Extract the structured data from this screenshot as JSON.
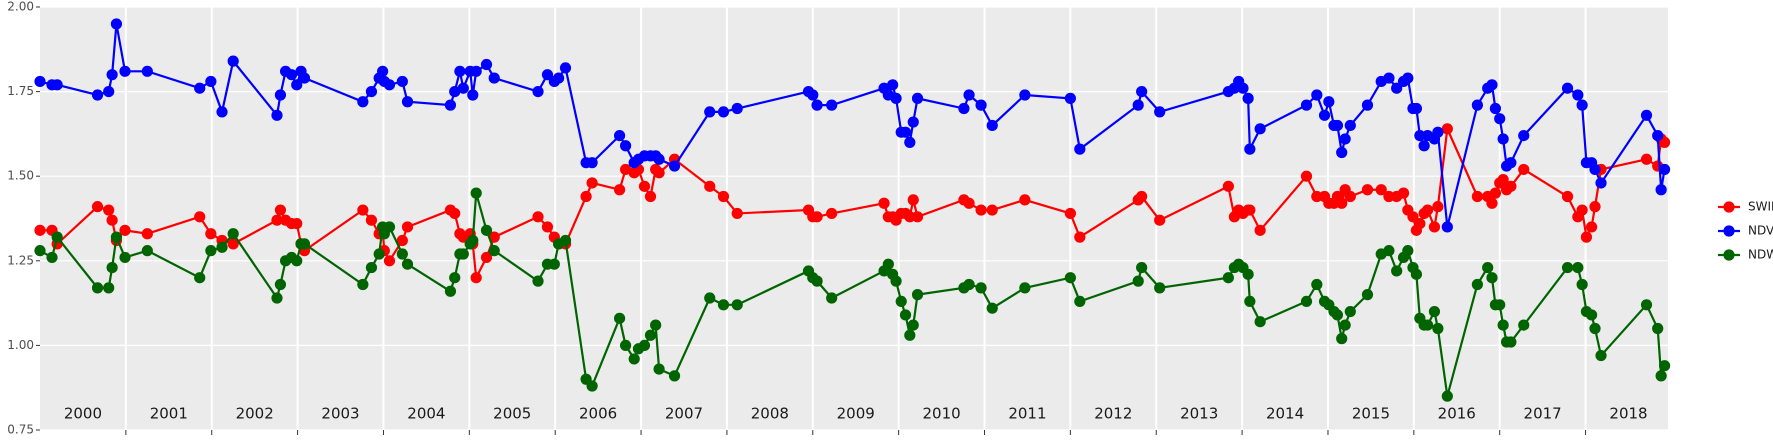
{
  "chart_data": {
    "type": "line",
    "x": [
      2000.0,
      2000.14,
      2000.2,
      2000.67,
      2000.8,
      2000.84,
      2000.89,
      2000.99,
      2001.25,
      2001.86,
      2001.99,
      2002.12,
      2002.25,
      2002.76,
      2002.8,
      2002.86,
      2002.93,
      2002.99,
      2003.04,
      2003.08,
      2003.76,
      2003.86,
      2003.95,
      2003.99,
      2004.01,
      2004.07,
      2004.22,
      2004.28,
      2004.78,
      2004.83,
      2004.89,
      2004.93,
      2005.01,
      2005.04,
      2005.08,
      2005.2,
      2005.29,
      2005.8,
      2005.91,
      2005.99,
      2006.04,
      2006.12,
      2006.36,
      2006.43,
      2006.75,
      2006.82,
      2006.92,
      2006.97,
      2007.04,
      2007.11,
      2007.17,
      2007.21,
      2007.39,
      2007.8,
      2007.96,
      2008.12,
      2008.95,
      2009.0,
      2009.05,
      2009.22,
      2009.83,
      2009.88,
      2009.93,
      2009.97,
      2010.03,
      2010.08,
      2010.13,
      2010.17,
      2010.22,
      2010.76,
      2010.82,
      2010.96,
      2011.09,
      2011.47,
      2012.0,
      2012.11,
      2012.79,
      2012.83,
      2013.04,
      2013.84,
      2013.91,
      2013.96,
      2014.01,
      2014.07,
      2014.09,
      2014.21,
      2014.75,
      2014.87,
      2014.96,
      2015.01,
      2015.07,
      2015.11,
      2015.16,
      2015.2,
      2015.26,
      2015.46,
      2015.62,
      2015.71,
      2015.8,
      2015.88,
      2015.93,
      2015.99,
      2016.03,
      2016.07,
      2016.12,
      2016.16,
      2016.24,
      2016.28,
      2016.39,
      2016.74,
      2016.86,
      2016.91,
      2016.95,
      2017.0,
      2017.04,
      2017.08,
      2017.13,
      2017.28,
      2017.79,
      2017.91,
      2017.96,
      2018.01,
      2018.07,
      2018.11,
      2018.18,
      2018.71,
      2018.84,
      2018.88,
      2018.92
    ],
    "series": [
      {
        "name": "SWIR",
        "color": "#ff0000",
        "values": [
          1.34,
          1.34,
          1.3,
          1.41,
          1.4,
          1.37,
          1.31,
          1.34,
          1.33,
          1.38,
          1.33,
          1.31,
          1.3,
          1.37,
          1.4,
          1.37,
          1.36,
          1.36,
          1.3,
          1.28,
          1.4,
          1.37,
          1.33,
          1.34,
          1.28,
          1.25,
          1.31,
          1.35,
          1.4,
          1.39,
          1.33,
          1.32,
          1.33,
          1.3,
          1.2,
          1.26,
          1.32,
          1.38,
          1.35,
          1.32,
          1.3,
          1.3,
          1.44,
          1.48,
          1.46,
          1.52,
          1.51,
          1.52,
          1.47,
          1.44,
          1.52,
          1.51,
          1.55,
          1.47,
          1.44,
          1.39,
          1.4,
          1.38,
          1.38,
          1.39,
          1.42,
          1.38,
          1.38,
          1.37,
          1.39,
          1.39,
          1.38,
          1.43,
          1.38,
          1.43,
          1.42,
          1.4,
          1.4,
          1.43,
          1.39,
          1.32,
          1.43,
          1.44,
          1.37,
          1.47,
          1.38,
          1.4,
          1.39,
          1.4,
          1.4,
          1.34,
          1.5,
          1.44,
          1.44,
          1.42,
          1.42,
          1.44,
          1.42,
          1.46,
          1.44,
          1.46,
          1.46,
          1.44,
          1.44,
          1.45,
          1.4,
          1.38,
          1.34,
          1.36,
          1.39,
          1.4,
          1.35,
          1.41,
          1.64,
          1.44,
          1.44,
          1.42,
          1.45,
          1.48,
          1.49,
          1.46,
          1.47,
          1.52,
          1.44,
          1.38,
          1.4,
          1.32,
          1.35,
          1.41,
          1.52,
          1.55,
          1.53,
          1.61,
          1.6
        ]
      },
      {
        "name": "NDVI",
        "color": "#0000ff",
        "values": [
          1.78,
          1.77,
          1.77,
          1.74,
          1.75,
          1.8,
          1.95,
          1.81,
          1.81,
          1.76,
          1.78,
          1.69,
          1.84,
          1.68,
          1.74,
          1.81,
          1.8,
          1.77,
          1.81,
          1.79,
          1.72,
          1.75,
          1.79,
          1.81,
          1.78,
          1.77,
          1.78,
          1.72,
          1.71,
          1.75,
          1.81,
          1.76,
          1.81,
          1.74,
          1.81,
          1.83,
          1.79,
          1.75,
          1.8,
          1.78,
          1.79,
          1.82,
          1.54,
          1.54,
          1.62,
          1.59,
          1.54,
          1.55,
          1.56,
          1.56,
          1.56,
          1.55,
          1.53,
          1.69,
          1.69,
          1.7,
          1.75,
          1.74,
          1.71,
          1.71,
          1.76,
          1.74,
          1.77,
          1.73,
          1.63,
          1.63,
          1.6,
          1.66,
          1.73,
          1.7,
          1.74,
          1.71,
          1.65,
          1.74,
          1.73,
          1.58,
          1.71,
          1.75,
          1.69,
          1.75,
          1.76,
          1.78,
          1.76,
          1.73,
          1.58,
          1.64,
          1.71,
          1.74,
          1.68,
          1.72,
          1.65,
          1.65,
          1.57,
          1.61,
          1.65,
          1.71,
          1.78,
          1.79,
          1.76,
          1.78,
          1.79,
          1.7,
          1.7,
          1.62,
          1.59,
          1.62,
          1.61,
          1.63,
          1.35,
          1.71,
          1.76,
          1.77,
          1.7,
          1.67,
          1.61,
          1.53,
          1.54,
          1.62,
          1.76,
          1.74,
          1.71,
          1.54,
          1.54,
          1.52,
          1.48,
          1.68,
          1.62,
          1.46,
          1.52
        ]
      },
      {
        "name": "NDWI",
        "color": "#006400",
        "values": [
          1.28,
          1.26,
          1.32,
          1.17,
          1.17,
          1.23,
          1.32,
          1.26,
          1.28,
          1.2,
          1.28,
          1.29,
          1.33,
          1.14,
          1.18,
          1.25,
          1.26,
          1.25,
          1.3,
          1.3,
          1.18,
          1.23,
          1.27,
          1.35,
          1.33,
          1.35,
          1.27,
          1.24,
          1.16,
          1.2,
          1.27,
          1.27,
          1.3,
          1.31,
          1.45,
          1.34,
          1.28,
          1.19,
          1.24,
          1.24,
          1.3,
          1.31,
          0.9,
          0.88,
          1.08,
          1.0,
          0.96,
          0.99,
          1.0,
          1.03,
          1.06,
          0.93,
          0.91,
          1.14,
          1.12,
          1.12,
          1.22,
          1.2,
          1.19,
          1.14,
          1.22,
          1.24,
          1.21,
          1.19,
          1.13,
          1.09,
          1.03,
          1.06,
          1.15,
          1.17,
          1.18,
          1.17,
          1.11,
          1.17,
          1.2,
          1.13,
          1.19,
          1.23,
          1.17,
          1.2,
          1.23,
          1.24,
          1.23,
          1.21,
          1.13,
          1.07,
          1.13,
          1.18,
          1.13,
          1.12,
          1.1,
          1.09,
          1.02,
          1.06,
          1.1,
          1.15,
          1.27,
          1.28,
          1.22,
          1.26,
          1.28,
          1.23,
          1.21,
          1.08,
          1.06,
          1.06,
          1.1,
          1.05,
          0.85,
          1.18,
          1.23,
          1.2,
          1.12,
          1.12,
          1.06,
          1.01,
          1.01,
          1.06,
          1.23,
          1.23,
          1.18,
          1.1,
          1.09,
          1.05,
          0.97,
          1.12,
          1.05,
          0.91,
          0.94
        ]
      }
    ],
    "xlim": [
      2000,
      2018.96
    ],
    "xticks": [
      2001,
      2002,
      2003,
      2004,
      2005,
      2006,
      2007,
      2008,
      2009,
      2010,
      2011,
      2012,
      2013,
      2014,
      2015,
      2016,
      2017,
      2018
    ],
    "year_labels": [
      {
        "value": 2000.5,
        "label": "2000"
      },
      {
        "value": 2001.5,
        "label": "2001"
      },
      {
        "value": 2002.5,
        "label": "2002"
      },
      {
        "value": 2003.5,
        "label": "2003"
      },
      {
        "value": 2004.5,
        "label": "2004"
      },
      {
        "value": 2005.5,
        "label": "2005"
      },
      {
        "value": 2006.5,
        "label": "2006"
      },
      {
        "value": 2007.5,
        "label": "2007"
      },
      {
        "value": 2008.5,
        "label": "2008"
      },
      {
        "value": 2009.5,
        "label": "2009"
      },
      {
        "value": 2010.5,
        "label": "2010"
      },
      {
        "value": 2011.5,
        "label": "2011"
      },
      {
        "value": 2012.5,
        "label": "2012"
      },
      {
        "value": 2013.5,
        "label": "2013"
      },
      {
        "value": 2014.5,
        "label": "2014"
      },
      {
        "value": 2015.5,
        "label": "2015"
      },
      {
        "value": 2016.5,
        "label": "2016"
      },
      {
        "value": 2017.5,
        "label": "2017"
      },
      {
        "value": 2018.5,
        "label": "2018"
      }
    ],
    "ylim": [
      0.75,
      2
    ],
    "yticks": [
      0.75,
      {
        "value": 1,
        "label": "1.00"
      },
      1.25,
      {
        "value": 1.5,
        "label": "1.50"
      },
      1.75,
      {
        "value": 2,
        "label": "2.00"
      }
    ],
    "grid": true,
    "legend": "right"
  }
}
